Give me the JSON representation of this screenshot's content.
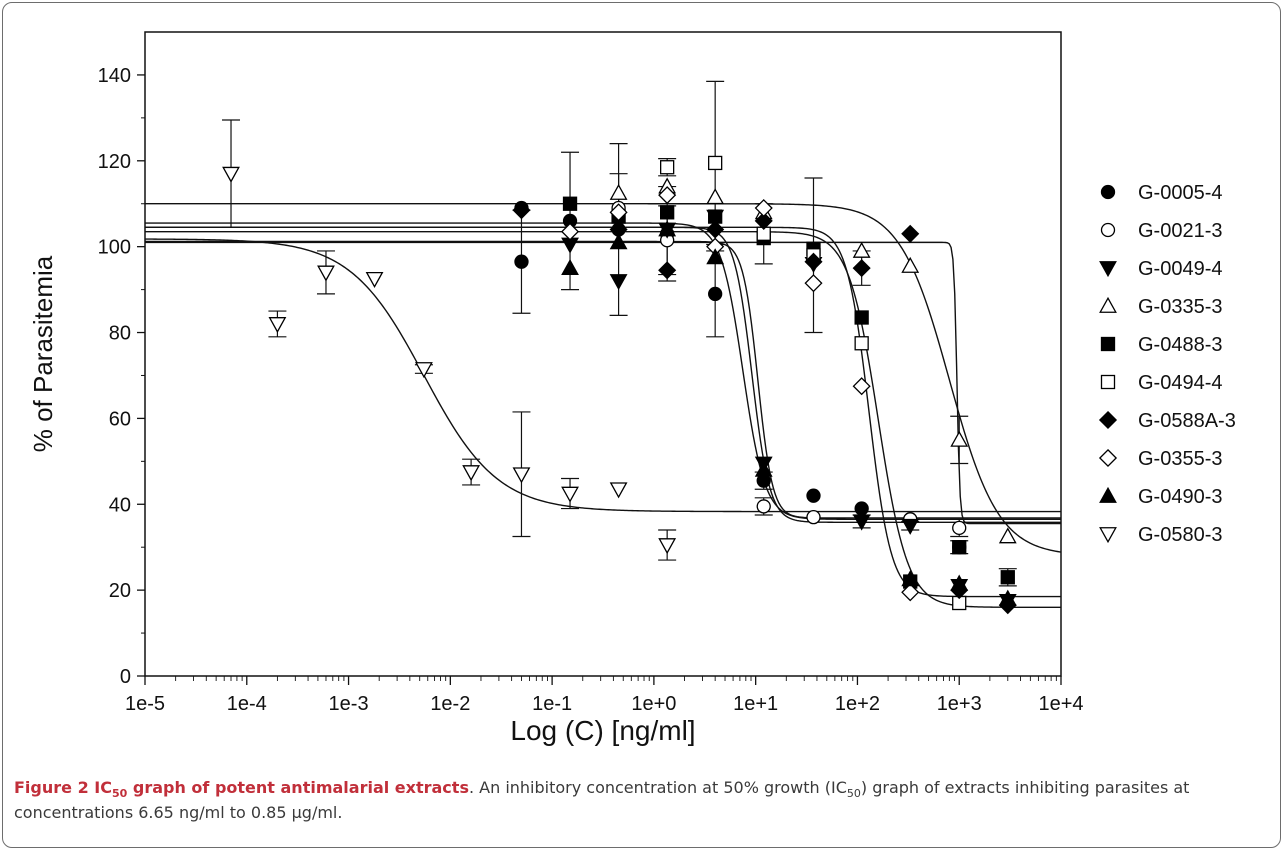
{
  "chart_data": {
    "type": "scatter",
    "xlabel": "Log (C) [ng/ml]",
    "ylabel": "% of Parasitemia",
    "x_scale": "log",
    "xlim": [
      1e-05,
      10000
    ],
    "ylim": [
      0,
      150
    ],
    "xticks": [
      "1e-5",
      "1e-4",
      "1e-3",
      "1e-2",
      "1e-1",
      "1e+0",
      "1e+1",
      "1e+2",
      "1e+3",
      "1e+4"
    ],
    "yticks": [
      0,
      20,
      40,
      60,
      80,
      100,
      120,
      140
    ],
    "grid": false,
    "legend": "right",
    "series": [
      {
        "name": "G-0005-4",
        "marker": "circle-filled",
        "x": [
          0.05,
          0.05,
          0.15,
          0.45,
          1.35,
          4,
          12,
          37,
          110,
          330,
          1000
        ],
        "y": [
          109,
          96.5,
          106,
          104,
          103,
          89,
          45.5,
          42,
          39,
          36.5,
          30
        ],
        "err": [
          0,
          12,
          16,
          20,
          11,
          10,
          2,
          0,
          0,
          0,
          1.5
        ]
      },
      {
        "name": "G-0021-3",
        "marker": "circle-open",
        "x": [
          0.45,
          1.35,
          12,
          37,
          330,
          1000
        ],
        "y": [
          109,
          101.5,
          39.5,
          37,
          36.5,
          34.5
        ],
        "err": [
          8,
          8,
          2,
          0,
          0,
          2
        ]
      },
      {
        "name": "G-0049-4",
        "marker": "triangle-down-filled",
        "x": [
          0.15,
          0.45,
          1.35,
          4,
          12,
          37,
          110,
          330,
          1000,
          3000
        ],
        "y": [
          100.5,
          92,
          104,
          107,
          49.5,
          96,
          36,
          35,
          21,
          17.5
        ],
        "err": [
          0,
          0,
          0,
          0,
          0,
          0,
          1.5,
          1,
          0,
          0
        ]
      },
      {
        "name": "G-0335-3",
        "marker": "triangle-up-open",
        "x": [
          0.45,
          1.35,
          4,
          12,
          110,
          330,
          1000,
          3000
        ],
        "y": [
          112.5,
          114,
          111.5,
          108,
          99,
          95.5,
          55,
          32.5
        ],
        "err": [
          0,
          0,
          0,
          0,
          0,
          0,
          5.5,
          0
        ]
      },
      {
        "name": "G-0488-3",
        "marker": "square-filled",
        "x": [
          0.15,
          0.45,
          1.35,
          4,
          12,
          37,
          110,
          330,
          1000,
          3000
        ],
        "y": [
          110,
          107,
          108,
          107,
          102,
          99.5,
          83.5,
          22,
          30,
          23
        ],
        "err": [
          0,
          0,
          0,
          0,
          0,
          0,
          0,
          0,
          0,
          2
        ]
      },
      {
        "name": "G-0494-4",
        "marker": "square-open",
        "x": [
          1.35,
          4,
          12,
          37,
          110,
          1000
        ],
        "y": [
          118.5,
          119.5,
          103,
          98,
          77.5,
          17
        ],
        "err": [
          2,
          19,
          7,
          18,
          0,
          0
        ]
      },
      {
        "name": "G-0588A-3",
        "marker": "diamond-filled",
        "x": [
          0.05,
          0.45,
          1.35,
          4,
          12,
          37,
          110,
          330,
          1000,
          3000
        ],
        "y": [
          108.5,
          104,
          94.5,
          104,
          106,
          96.5,
          95,
          103,
          20,
          16.5
        ],
        "err": [
          0,
          0,
          0,
          0,
          0,
          0,
          4,
          0,
          0,
          0
        ]
      },
      {
        "name": "G-0355-3",
        "marker": "diamond-open",
        "x": [
          0.15,
          0.45,
          1.35,
          4,
          12,
          37,
          110,
          330
        ],
        "y": [
          103.5,
          108,
          112,
          100,
          109,
          91.5,
          67.5,
          19.5
        ],
        "err": [
          0,
          0,
          0,
          0,
          0,
          0,
          0,
          0
        ]
      },
      {
        "name": "G-0490-3",
        "marker": "triangle-up-filled",
        "x": [
          0.15,
          0.45,
          1.35,
          4,
          12,
          330,
          1000,
          3000
        ],
        "y": [
          95,
          101,
          104,
          97.5,
          48,
          22.5,
          21.5,
          18
        ],
        "err": [
          0,
          0,
          0,
          0,
          0,
          0,
          0,
          0
        ]
      },
      {
        "name": "G-0580-3",
        "marker": "triangle-down-open",
        "x": [
          7e-05,
          0.0002,
          0.0006,
          0.0018,
          0.0055,
          0.016,
          0.05,
          0.15,
          0.45,
          1.35
        ],
        "y": [
          117,
          82,
          94,
          92.5,
          71.5,
          47.5,
          47,
          42.5,
          43.5,
          30.5
        ],
        "err": [
          12.5,
          3,
          5,
          0,
          1,
          3,
          14.5,
          3.5,
          0,
          3.5
        ]
      }
    ],
    "fit_curves": [
      {
        "top": 101.8,
        "bottom": 38.3,
        "ic50": 0.0055,
        "hill": 1.2
      },
      {
        "top": 105.5,
        "bottom": 36.5,
        "ic50": 7.5,
        "hill": 4
      },
      {
        "top": 104.5,
        "bottom": 35.8,
        "ic50": 9.2,
        "hill": 5
      },
      {
        "top": 101.2,
        "bottom": 36.8,
        "ic50": 10.5,
        "hill": 6
      },
      {
        "top": 104.5,
        "bottom": 18.5,
        "ic50": 130,
        "hill": 4
      },
      {
        "top": 103.5,
        "bottom": 16,
        "ic50": 160,
        "hill": 3
      },
      {
        "top": 110,
        "bottom": 28,
        "ic50": 800,
        "hill": 1.8
      },
      {
        "top": 101,
        "bottom": 35.5,
        "ic50": 950,
        "hill": 30
      }
    ]
  },
  "caption": {
    "label": "Figure 2",
    "ic_prefix": "IC",
    "ic_sub": "50",
    "title_rest": " graph of potent antimalarial extracts",
    "text_a": ". An inhibitory concentration at 50% growth (IC",
    "text_sub": "50",
    "text_b": ") graph of extracts inhibiting parasites at concentrations 6.65 ng/ml to 0.85 µg/ml."
  }
}
